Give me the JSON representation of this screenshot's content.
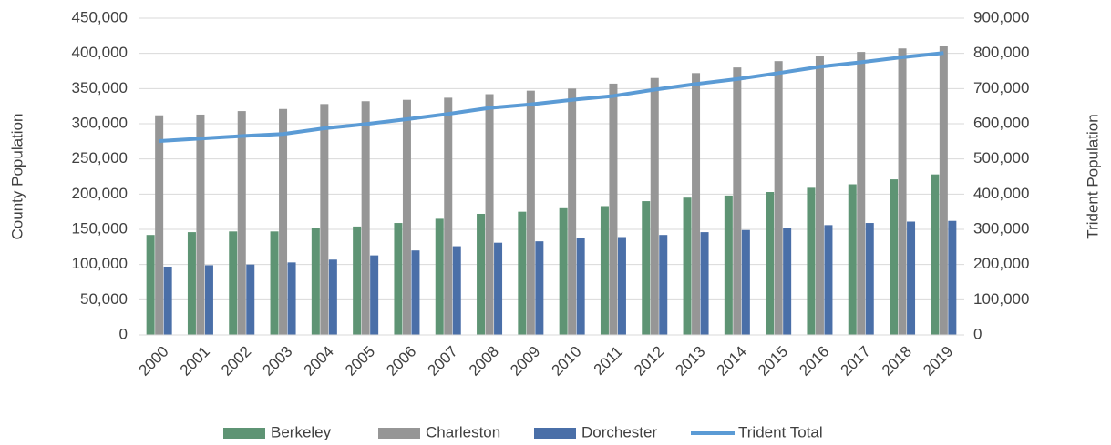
{
  "chart_data": {
    "type": "bar",
    "y_label": "County Population",
    "y2_label": "Trident Population",
    "categories": [
      "2000",
      "2001",
      "2002",
      "2003",
      "2004",
      "2005",
      "2006",
      "2007",
      "2008",
      "2009",
      "2010",
      "2011",
      "2012",
      "2013",
      "2014",
      "2015",
      "2016",
      "2017",
      "2018",
      "2019"
    ],
    "series": [
      {
        "name": "Berkeley",
        "color": "#5e9474",
        "type": "bar",
        "values": [
          142000,
          146000,
          147000,
          147000,
          152000,
          154000,
          159000,
          165000,
          172000,
          175000,
          180000,
          183000,
          190000,
          195000,
          198000,
          203000,
          209000,
          214000,
          221000,
          228000
        ]
      },
      {
        "name": "Charleston",
        "color": "#969696",
        "type": "bar",
        "values": [
          312000,
          313000,
          318000,
          321000,
          328000,
          332000,
          334000,
          337000,
          342000,
          347000,
          350000,
          357000,
          365000,
          372000,
          380000,
          389000,
          397000,
          402000,
          407000,
          411000
        ]
      },
      {
        "name": "Dorchester",
        "color": "#4a6fa8",
        "type": "bar",
        "values": [
          97000,
          99000,
          100000,
          103000,
          107000,
          113000,
          120000,
          126000,
          131000,
          133000,
          138000,
          139000,
          142000,
          146000,
          149000,
          152000,
          156000,
          159000,
          161000,
          162000
        ]
      },
      {
        "name": "Trident Total",
        "color": "#5b9bd5",
        "type": "line",
        "axis": "y2",
        "values": [
          551000,
          558000,
          565000,
          571000,
          587000,
          599000,
          613000,
          628000,
          645000,
          655000,
          668000,
          679000,
          697000,
          713000,
          727000,
          744000,
          762000,
          775000,
          789000,
          801000
        ]
      }
    ],
    "ylim": [
      0,
      450000
    ],
    "yticks": [
      0,
      {
        "value": 50000,
        "label": "50,000"
      },
      {
        "value": 100000,
        "label": "100,000"
      },
      {
        "value": 150000,
        "label": "150,000"
      },
      {
        "value": 200000,
        "label": "200,000"
      },
      {
        "value": 250000,
        "label": "250,000"
      },
      {
        "value": 300000,
        "label": "300,000"
      },
      {
        "value": 350000,
        "label": "350,000"
      },
      {
        "value": 400000,
        "label": "400,000"
      },
      {
        "value": 450000,
        "label": "450,000"
      }
    ],
    "y2lim": [
      0,
      900000
    ],
    "y2ticks": [
      0,
      {
        "value": 100000,
        "label": "100,000"
      },
      {
        "value": 200000,
        "label": "200,000"
      },
      {
        "value": 300000,
        "label": "300,000"
      },
      {
        "value": 400000,
        "label": "400,000"
      },
      {
        "value": 500000,
        "label": "500,000"
      },
      {
        "value": 600000,
        "label": "600,000"
      },
      {
        "value": 700000,
        "label": "700,000"
      },
      {
        "value": 800000,
        "label": "800,000"
      },
      {
        "value": 900000,
        "label": "900,000"
      }
    ],
    "grid": true,
    "legend": "bottom"
  }
}
